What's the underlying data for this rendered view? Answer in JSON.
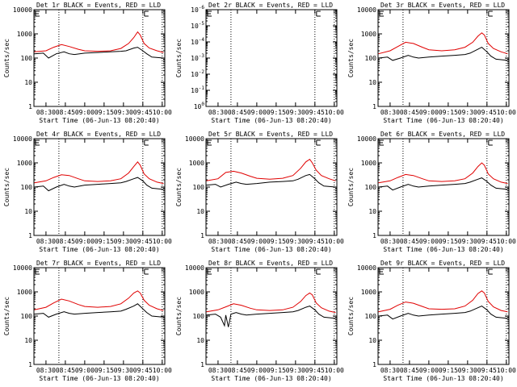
{
  "colors": {
    "events": "#000000",
    "lld": "#e00000",
    "axis": "#000000",
    "background": "#ffffff"
  },
  "x_tick_labels": [
    "08:30",
    "08:45",
    "09:00",
    "09:15",
    "09:30",
    "09:45",
    "10:00"
  ],
  "x_label": "Start Time (06-Jun-13 08:20:40)",
  "y_label": "Counts/sec",
  "chart_data": [
    {
      "type": "line",
      "title": "Det 1r BLACK = Events, RED = LLD",
      "xlabel": "Start Time (06-Jun-13 08:20:40)",
      "ylabel": "Counts/sec",
      "x_range": [
        "08:20:40",
        "10:02"
      ],
      "y_scale": "log",
      "ylim": [
        1,
        10000
      ],
      "y_tick_labels": [
        "1",
        "10",
        "100",
        "1000",
        "10000"
      ],
      "x_tick_labels": [
        "08:30",
        "08:45",
        "09:00",
        "09:15",
        "09:30",
        "09:45",
        "10:00"
      ],
      "markers": [
        "08:40",
        "09:45",
        "10:00"
      ],
      "series": [
        {
          "name": "Events",
          "color": "#000000",
          "x": [
            "08:21",
            "08:28",
            "08:32",
            "08:38",
            "08:44",
            "08:48",
            "08:52",
            "09:00",
            "09:10",
            "09:20",
            "09:28",
            "09:32",
            "09:38",
            "09:41",
            "09:45",
            "09:48",
            "09:52",
            "10:01"
          ],
          "y": [
            150,
            160,
            100,
            150,
            180,
            150,
            140,
            160,
            170,
            180,
            190,
            200,
            260,
            280,
            200,
            150,
            110,
            100
          ]
        },
        {
          "name": "LLD",
          "color": "#e00000",
          "x": [
            "08:21",
            "08:30",
            "08:36",
            "08:42",
            "08:48",
            "08:55",
            "09:00",
            "09:10",
            "09:20",
            "09:28",
            "09:34",
            "09:38",
            "09:41",
            "09:43",
            "09:46",
            "09:50",
            "09:56",
            "10:01"
          ],
          "y": [
            180,
            200,
            280,
            360,
            300,
            230,
            200,
            190,
            200,
            250,
            400,
            700,
            1200,
            900,
            400,
            260,
            200,
            170
          ]
        }
      ]
    },
    {
      "type": "line",
      "title": "Det 2r BLACK = Events, RED = LLD",
      "xlabel": "Start Time (06-Jun-13 08:20:40)",
      "ylabel": "Counts/sec",
      "x_range": [
        "08:20:40",
        "10:02"
      ],
      "y_scale": "log",
      "ylim": [
        1,
        1e-06
      ],
      "y_tick_labels": [
        "10^0",
        "10^-1",
        "10^-2",
        "10^-3",
        "10^-4",
        "10^-5",
        "10^-6"
      ],
      "x_tick_labels": [
        "08:30",
        "08:45",
        "09:00",
        "09:15",
        "09:30",
        "09:45",
        "10:00"
      ],
      "markers": [
        "08:40",
        "09:45",
        "10:00"
      ],
      "series": []
    },
    {
      "type": "line",
      "title": "Det 3r BLACK = Events, RED = LLD",
      "xlabel": "Start Time (06-Jun-13 08:20:40)",
      "ylabel": "Counts/sec",
      "x_range": [
        "08:20:40",
        "10:02"
      ],
      "y_scale": "log",
      "ylim": [
        1,
        10000
      ],
      "y_tick_labels": [
        "1",
        "10",
        "100",
        "1000",
        "10000"
      ],
      "x_tick_labels": [
        "08:30",
        "08:45",
        "09:00",
        "09:15",
        "09:30",
        "09:45",
        "10:00"
      ],
      "markers": [
        "08:40",
        "09:45",
        "10:00"
      ],
      "series": [
        {
          "name": "Events",
          "color": "#000000",
          "x": [
            "08:21",
            "08:28",
            "08:32",
            "08:38",
            "08:44",
            "08:48",
            "08:52",
            "09:00",
            "09:10",
            "09:20",
            "09:28",
            "09:32",
            "09:38",
            "09:41",
            "09:45",
            "09:48",
            "09:52",
            "10:01"
          ],
          "y": [
            100,
            110,
            80,
            100,
            130,
            110,
            100,
            110,
            120,
            130,
            140,
            160,
            230,
            280,
            180,
            120,
            90,
            80
          ]
        },
        {
          "name": "LLD",
          "color": "#e00000",
          "x": [
            "08:21",
            "08:30",
            "08:36",
            "08:42",
            "08:48",
            "08:55",
            "09:00",
            "09:10",
            "09:20",
            "09:28",
            "09:34",
            "09:38",
            "09:41",
            "09:43",
            "09:46",
            "09:50",
            "09:56",
            "10:01"
          ],
          "y": [
            150,
            200,
            300,
            450,
            400,
            280,
            220,
            200,
            220,
            280,
            450,
            800,
            1100,
            900,
            400,
            250,
            180,
            150
          ]
        }
      ]
    },
    {
      "type": "line",
      "title": "Det 4r BLACK = Events, RED = LLD",
      "xlabel": "Start Time (06-Jun-13 08:20:40)",
      "ylabel": "Counts/sec",
      "x_range": [
        "08:20:40",
        "10:02"
      ],
      "y_scale": "log",
      "ylim": [
        1,
        10000
      ],
      "y_tick_labels": [
        "1",
        "10",
        "100",
        "1000",
        "10000"
      ],
      "x_tick_labels": [
        "08:30",
        "08:45",
        "09:00",
        "09:15",
        "09:30",
        "09:45",
        "10:00"
      ],
      "markers": [
        "08:40",
        "09:45",
        "10:00"
      ],
      "series": [
        {
          "name": "Events",
          "color": "#000000",
          "x": [
            "08:21",
            "08:28",
            "08:32",
            "08:38",
            "08:44",
            "08:48",
            "08:52",
            "09:00",
            "09:10",
            "09:20",
            "09:28",
            "09:32",
            "09:38",
            "09:41",
            "09:45",
            "09:48",
            "09:52",
            "10:01"
          ],
          "y": [
            100,
            110,
            70,
            100,
            130,
            110,
            100,
            120,
            130,
            140,
            150,
            170,
            220,
            250,
            180,
            120,
            90,
            80
          ]
        },
        {
          "name": "LLD",
          "color": "#e00000",
          "x": [
            "08:21",
            "08:30",
            "08:36",
            "08:42",
            "08:48",
            "08:55",
            "09:00",
            "09:10",
            "09:20",
            "09:28",
            "09:34",
            "09:38",
            "09:41",
            "09:43",
            "09:46",
            "09:50",
            "09:56",
            "10:01"
          ],
          "y": [
            150,
            180,
            250,
            320,
            300,
            220,
            180,
            170,
            180,
            220,
            380,
            700,
            1100,
            800,
            350,
            220,
            160,
            140
          ]
        }
      ]
    },
    {
      "type": "line",
      "title": "Det 5r BLACK = Events, RED = LLD",
      "xlabel": "Start Time (06-Jun-13 08:20:40)",
      "ylabel": "Counts/sec",
      "x_range": [
        "08:20:40",
        "10:02"
      ],
      "y_scale": "log",
      "ylim": [
        1,
        10000
      ],
      "y_tick_labels": [
        "1",
        "10",
        "100",
        "1000",
        "10000"
      ],
      "x_tick_labels": [
        "08:30",
        "08:45",
        "09:00",
        "09:15",
        "09:30",
        "09:45",
        "10:00"
      ],
      "markers": [
        "08:40",
        "09:45",
        "10:00"
      ],
      "series": [
        {
          "name": "Events",
          "color": "#000000",
          "x": [
            "08:21",
            "08:28",
            "08:32",
            "08:38",
            "08:44",
            "08:48",
            "08:52",
            "09:00",
            "09:10",
            "09:20",
            "09:28",
            "09:32",
            "09:38",
            "09:41",
            "09:45",
            "09:48",
            "09:52",
            "10:01"
          ],
          "y": [
            120,
            130,
            100,
            130,
            160,
            140,
            130,
            140,
            160,
            170,
            180,
            210,
            300,
            330,
            220,
            150,
            110,
            100
          ]
        },
        {
          "name": "LLD",
          "color": "#e00000",
          "x": [
            "08:21",
            "08:30",
            "08:36",
            "08:42",
            "08:48",
            "08:55",
            "09:00",
            "09:10",
            "09:20",
            "09:28",
            "09:34",
            "09:38",
            "09:41",
            "09:43",
            "09:46",
            "09:50",
            "09:56",
            "10:01"
          ],
          "y": [
            180,
            220,
            400,
            450,
            380,
            280,
            230,
            210,
            230,
            300,
            600,
            1100,
            1400,
            1000,
            500,
            300,
            220,
            180
          ]
        }
      ]
    },
    {
      "type": "line",
      "title": "Det 6r BLACK = Events, RED = LLD",
      "xlabel": "Start Time (06-Jun-13 08:20:40)",
      "ylabel": "Counts/sec",
      "x_range": [
        "08:20:40",
        "10:02"
      ],
      "y_scale": "log",
      "ylim": [
        1,
        10000
      ],
      "y_tick_labels": [
        "1",
        "10",
        "100",
        "1000",
        "10000"
      ],
      "x_tick_labels": [
        "08:30",
        "08:45",
        "09:00",
        "09:15",
        "09:30",
        "09:45",
        "10:00"
      ],
      "markers": [
        "08:40",
        "09:45",
        "10:00"
      ],
      "series": [
        {
          "name": "Events",
          "color": "#000000",
          "x": [
            "08:21",
            "08:28",
            "08:32",
            "08:38",
            "08:44",
            "08:48",
            "08:52",
            "09:00",
            "09:10",
            "09:20",
            "09:28",
            "09:32",
            "09:38",
            "09:41",
            "09:45",
            "09:48",
            "09:52",
            "10:01"
          ],
          "y": [
            100,
            110,
            75,
            100,
            130,
            110,
            100,
            110,
            120,
            130,
            140,
            160,
            210,
            240,
            170,
            120,
            90,
            80
          ]
        },
        {
          "name": "LLD",
          "color": "#e00000",
          "x": [
            "08:21",
            "08:30",
            "08:36",
            "08:42",
            "08:48",
            "08:55",
            "09:00",
            "09:10",
            "09:20",
            "09:28",
            "09:34",
            "09:38",
            "09:41",
            "09:43",
            "09:46",
            "09:50",
            "09:56",
            "10:01"
          ],
          "y": [
            150,
            180,
            250,
            330,
            300,
            220,
            180,
            170,
            180,
            220,
            380,
            700,
            1000,
            800,
            350,
            220,
            160,
            140
          ]
        }
      ]
    },
    {
      "type": "line",
      "title": "Det 7r BLACK = Events, RED = LLD",
      "xlabel": "Start Time (06-Jun-13 08:20:40)",
      "ylabel": "Counts/sec",
      "x_range": [
        "08:20:40",
        "10:02"
      ],
      "y_scale": "log",
      "ylim": [
        1,
        10000
      ],
      "y_tick_labels": [
        "1",
        "10",
        "100",
        "1000",
        "10000"
      ],
      "x_tick_labels": [
        "08:30",
        "08:45",
        "09:00",
        "09:15",
        "09:30",
        "09:45",
        "10:00"
      ],
      "markers": [
        "08:40",
        "09:45",
        "10:00"
      ],
      "series": [
        {
          "name": "Events",
          "color": "#000000",
          "x": [
            "08:21",
            "08:28",
            "08:32",
            "08:38",
            "08:44",
            "08:48",
            "08:52",
            "09:00",
            "09:10",
            "09:20",
            "09:28",
            "09:32",
            "09:38",
            "09:41",
            "09:45",
            "09:48",
            "09:52",
            "10:01"
          ],
          "y": [
            120,
            130,
            90,
            120,
            150,
            130,
            120,
            130,
            140,
            150,
            160,
            190,
            260,
            320,
            200,
            140,
            100,
            90
          ]
        },
        {
          "name": "LLD",
          "color": "#e00000",
          "x": [
            "08:21",
            "08:30",
            "08:36",
            "08:42",
            "08:48",
            "08:55",
            "09:00",
            "09:10",
            "09:20",
            "09:28",
            "09:34",
            "09:38",
            "09:41",
            "09:43",
            "09:46",
            "09:50",
            "09:56",
            "10:01"
          ],
          "y": [
            180,
            230,
            350,
            500,
            420,
            300,
            250,
            230,
            250,
            320,
            550,
            900,
            1100,
            900,
            450,
            280,
            200,
            170
          ]
        }
      ]
    },
    {
      "type": "line",
      "title": "Det 8r BLACK = Events, RED = LLD",
      "xlabel": "Start Time (06-Jun-13 08:20:40)",
      "ylabel": "Counts/sec",
      "x_range": [
        "08:20:40",
        "10:02"
      ],
      "y_scale": "log",
      "ylim": [
        1,
        10000
      ],
      "y_tick_labels": [
        "1",
        "10",
        "100",
        "1000",
        "10000"
      ],
      "x_tick_labels": [
        "08:30",
        "08:45",
        "09:00",
        "09:15",
        "09:30",
        "09:45",
        "10:00"
      ],
      "markers": [
        "08:40",
        "09:45",
        "10:00"
      ],
      "series": [
        {
          "name": "Events",
          "color": "#000000",
          "x": [
            "08:21",
            "08:28",
            "08:32",
            "08:35",
            "08:36",
            "08:38",
            "08:40",
            "08:42",
            "08:44",
            "08:48",
            "08:52",
            "09:00",
            "09:10",
            "09:20",
            "09:28",
            "09:32",
            "09:38",
            "09:41",
            "09:45",
            "09:48",
            "09:52",
            "10:01"
          ],
          "y": [
            110,
            120,
            90,
            40,
            110,
            35,
            120,
            130,
            140,
            120,
            110,
            120,
            130,
            140,
            150,
            170,
            230,
            260,
            180,
            120,
            90,
            80
          ]
        },
        {
          "name": "LLD",
          "color": "#e00000",
          "x": [
            "08:21",
            "08:30",
            "08:36",
            "08:42",
            "08:48",
            "08:55",
            "09:00",
            "09:10",
            "09:20",
            "09:28",
            "09:34",
            "09:38",
            "09:41",
            "09:43",
            "09:46",
            "09:50",
            "09:56",
            "10:01"
          ],
          "y": [
            150,
            180,
            240,
            320,
            280,
            210,
            180,
            170,
            180,
            230,
            400,
            700,
            900,
            750,
            350,
            220,
            160,
            140
          ]
        }
      ]
    },
    {
      "type": "line",
      "title": "Det 9r BLACK = Events, RED = LLD",
      "xlabel": "Start Time (06-Jun-13 08:20:40)",
      "ylabel": "Counts/sec",
      "x_range": [
        "08:20:40",
        "10:02"
      ],
      "y_scale": "log",
      "ylim": [
        1,
        10000
      ],
      "y_tick_labels": [
        "1",
        "10",
        "100",
        "1000",
        "10000"
      ],
      "x_tick_labels": [
        "08:30",
        "08:45",
        "09:00",
        "09:15",
        "09:30",
        "09:45",
        "10:00"
      ],
      "markers": [
        "08:40",
        "09:45",
        "10:00"
      ],
      "series": [
        {
          "name": "Events",
          "color": "#000000",
          "x": [
            "08:21",
            "08:28",
            "08:32",
            "08:38",
            "08:44",
            "08:48",
            "08:52",
            "09:00",
            "09:10",
            "09:20",
            "09:28",
            "09:32",
            "09:38",
            "09:41",
            "09:45",
            "09:48",
            "09:52",
            "10:01"
          ],
          "y": [
            100,
            110,
            75,
            100,
            130,
            110,
            100,
            110,
            120,
            130,
            140,
            160,
            220,
            260,
            180,
            120,
            90,
            80
          ]
        },
        {
          "name": "LLD",
          "color": "#e00000",
          "x": [
            "08:21",
            "08:30",
            "08:36",
            "08:42",
            "08:48",
            "08:55",
            "09:00",
            "09:10",
            "09:20",
            "09:28",
            "09:34",
            "09:38",
            "09:41",
            "09:43",
            "09:46",
            "09:50",
            "09:56",
            "10:01"
          ],
          "y": [
            150,
            190,
            280,
            380,
            340,
            250,
            200,
            190,
            200,
            260,
            450,
            850,
            1100,
            900,
            400,
            240,
            170,
            150
          ]
        }
      ]
    }
  ]
}
